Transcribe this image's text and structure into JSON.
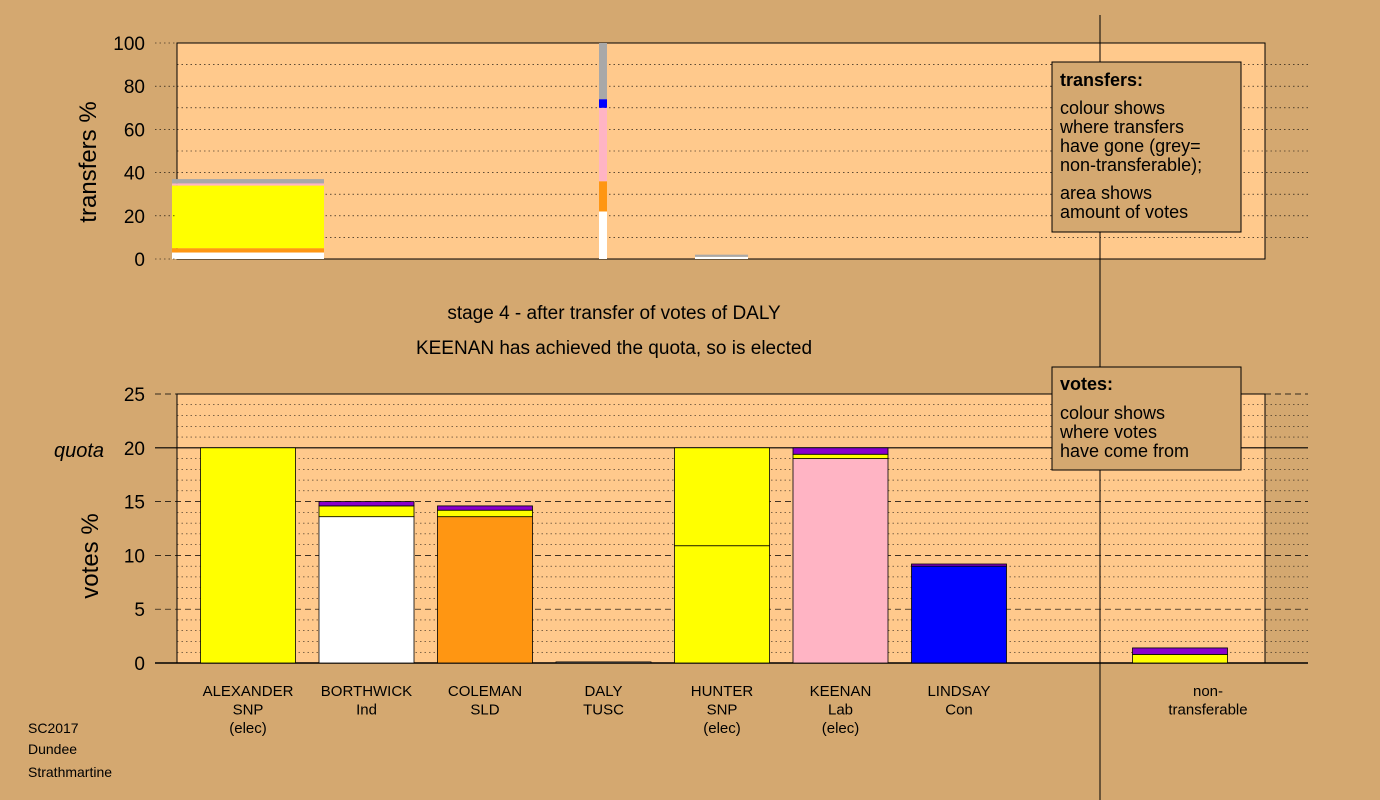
{
  "chart_data": [
    {
      "type": "bar",
      "stacked": true,
      "ylabel": "transfers %",
      "ylim": [
        0,
        100
      ],
      "yticks": [
        0,
        20,
        40,
        60,
        80,
        100
      ],
      "grid": true,
      "legend": {
        "placement": "top-right",
        "title": "transfers:",
        "lines": [
          "colour shows",
          "where transfers",
          "have gone (grey=",
          "non-transferable);"
        ],
        "lines2": [
          "area shows",
          "amount of votes"
        ]
      },
      "colors": {
        "white": "#ffffff",
        "yellow": "#ffff00",
        "orange": "#ff9612",
        "pink": "#ffb4c4",
        "blue": "#0000ff",
        "grey": "#a8a8a8",
        "purple": "#8800cc"
      },
      "bars": [
        {
          "index": 0,
          "width_share": 1.0,
          "segments": [
            {
              "color": "white",
              "value": 3
            },
            {
              "color": "orange",
              "value": 2
            },
            {
              "color": "yellow",
              "value": 29
            },
            {
              "color": "pink",
              "value": 1
            },
            {
              "color": "grey",
              "value": 2
            }
          ]
        },
        {
          "index": 3,
          "width_share": 0.05,
          "segments": [
            {
              "color": "white",
              "value": 22
            },
            {
              "color": "orange",
              "value": 14
            },
            {
              "color": "pink",
              "value": 34
            },
            {
              "color": "blue",
              "value": 4
            },
            {
              "color": "grey",
              "value": 26
            }
          ]
        },
        {
          "index": 4,
          "width_share": 0.35,
          "segments": [
            {
              "color": "white",
              "value": 1
            },
            {
              "color": "grey",
              "value": 1
            }
          ]
        }
      ]
    },
    {
      "type": "bar",
      "stacked": true,
      "ylabel": "votes %",
      "ylim": [
        0,
        25
      ],
      "yticks": [
        0,
        5,
        10,
        15,
        20,
        25
      ],
      "quota": 20,
      "quota_label": "quota",
      "grid": true,
      "legend": {
        "placement": "top-right",
        "title": "votes:",
        "lines": [
          "colour shows",
          "where votes",
          "have come from"
        ]
      },
      "categories": [
        [
          "ALEXANDER",
          "SNP",
          "(elec)"
        ],
        [
          "BORTHWICK",
          "Ind"
        ],
        [
          "COLEMAN",
          "SLD"
        ],
        [
          "DALY",
          "TUSC"
        ],
        [
          "HUNTER",
          "SNP",
          "(elec)"
        ],
        [
          "KEENAN",
          "Lab",
          "(elec)"
        ],
        [
          "LINDSAY",
          "Con"
        ]
      ],
      "nontransferable_label": [
        "non-",
        "transferable"
      ],
      "candidates": [
        {
          "segments": [
            {
              "color": "yellow",
              "value": 20
            }
          ]
        },
        {
          "segments": [
            {
              "color": "white",
              "value": 13.6
            },
            {
              "color": "yellow",
              "value": 1.0
            },
            {
              "color": "purple",
              "value": 0.4
            }
          ]
        },
        {
          "segments": [
            {
              "color": "orange",
              "value": 13.6
            },
            {
              "color": "yellow",
              "value": 0.6
            },
            {
              "color": "purple",
              "value": 0.4
            }
          ]
        },
        {
          "segments": [
            {
              "color": "grey",
              "value": 0.1
            }
          ]
        },
        {
          "segments": [
            {
              "color": "yellow",
              "value": 10.9
            },
            {
              "color": "yellow",
              "value": 9.1
            }
          ]
        },
        {
          "segments": [
            {
              "color": "pink",
              "value": 19.0
            },
            {
              "color": "yellow",
              "value": 0.4
            },
            {
              "color": "purple",
              "value": 0.6
            }
          ]
        },
        {
          "segments": [
            {
              "color": "blue",
              "value": 9.0
            },
            {
              "color": "purple",
              "value": 0.2
            }
          ]
        }
      ],
      "nontransferable": {
        "segments": [
          {
            "color": "yellow",
            "value": 0.8
          },
          {
            "color": "purple",
            "value": 0.6
          }
        ]
      }
    }
  ],
  "caption": {
    "line1": "stage 4 - after transfer of votes of DALY",
    "line2": "KEENAN has achieved the quota, so is elected"
  },
  "footer": [
    "SC2017",
    "Dundee",
    "Strathmartine"
  ]
}
